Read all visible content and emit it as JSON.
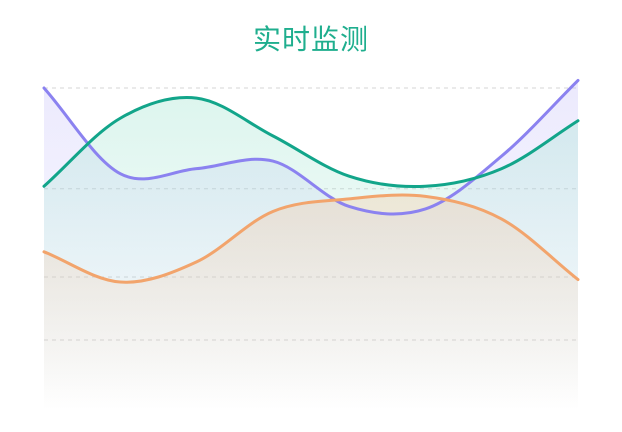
{
  "title": "实时监测",
  "chart_data": {
    "type": "area",
    "title": "实时监测",
    "xlabel": "",
    "ylabel": "",
    "grid": true,
    "axes_visible": false,
    "ylim": [
      0,
      100
    ],
    "x": [
      0,
      1,
      2,
      3,
      4,
      5,
      6,
      7
    ],
    "series": [
      {
        "color": "#8b82f0",
        "fill": "#b9b2f8",
        "values": [
          100,
          66,
          68,
          71,
          53,
          52,
          73,
          103
        ]
      },
      {
        "color": "#12a58a",
        "fill": "#9ee3cf",
        "values": [
          61,
          88,
          96,
          81,
          65,
          61,
          68,
          87
        ]
      },
      {
        "color": "#f2a46c",
        "fill": "#f5c6a0",
        "values": [
          35,
          23,
          31,
          51,
          56,
          57,
          48,
          24
        ]
      }
    ]
  }
}
